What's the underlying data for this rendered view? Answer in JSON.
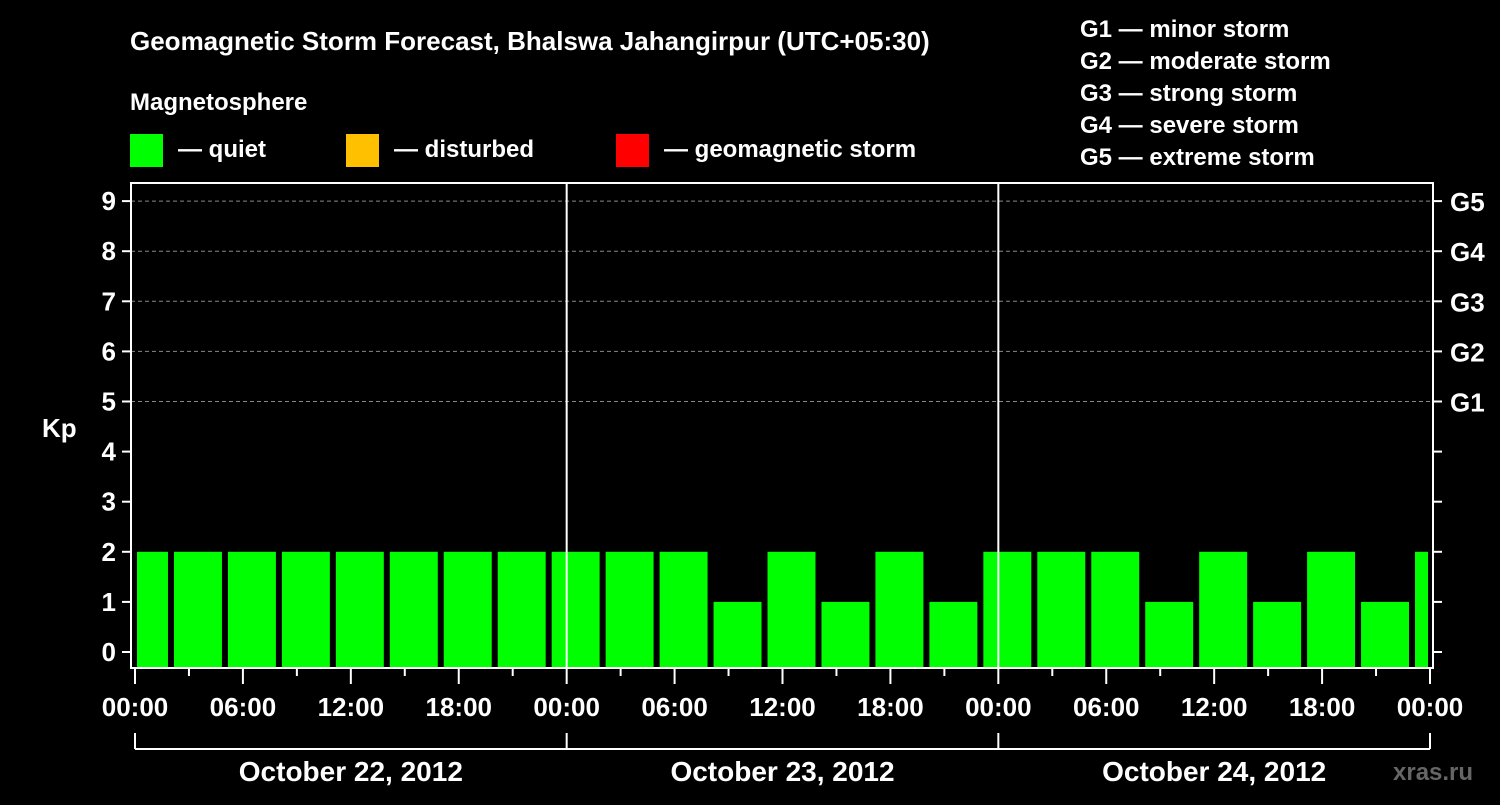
{
  "chart_data": {
    "type": "bar",
    "title": "Geomagnetic Storm Forecast, Bhalswa Jahangirpur (UTC+05:30)",
    "legend_title": "Magnetosphere",
    "legend": [
      {
        "label": "— quiet",
        "color": "#00ff00"
      },
      {
        "label": "— disturbed",
        "color": "#ffc000"
      },
      {
        "label": "— geomagnetic storm",
        "color": "#ff0000"
      }
    ],
    "g_scale": [
      "G1 — minor storm",
      "G2 — moderate storm",
      "G3 — strong storm",
      "G4 — severe storm",
      "G5 — extreme storm"
    ],
    "ylabel": "Kp",
    "ylim": [
      0,
      9
    ],
    "yticks": [
      "0",
      "1",
      "2",
      "3",
      "4",
      "5",
      "6",
      "7",
      "8",
      "9"
    ],
    "right_ticks": [
      {
        "kp": 5,
        "label": "G1"
      },
      {
        "kp": 6,
        "label": "G2"
      },
      {
        "kp": 7,
        "label": "G3"
      },
      {
        "kp": 8,
        "label": "G4"
      },
      {
        "kp": 9,
        "label": "G5"
      }
    ],
    "grid": "dashed at Kp 5-9",
    "xlim_hours": [
      0,
      72
    ],
    "xticks": [
      "00:00",
      "06:00",
      "12:00",
      "18:00",
      "00:00",
      "06:00",
      "12:00",
      "18:00",
      "00:00",
      "06:00",
      "12:00",
      "18:00",
      "00:00"
    ],
    "days": [
      "October 22, 2012",
      "October 23, 2012",
      "October 24, 2012"
    ],
    "bar_start_hours": [
      -1,
      2,
      5,
      8,
      11,
      14,
      17,
      20,
      23,
      26,
      29,
      32,
      35,
      38,
      41,
      44,
      47,
      50,
      53,
      56,
      59,
      62,
      65,
      68,
      71
    ],
    "values": [
      2,
      2,
      2,
      2,
      2,
      2,
      2,
      2,
      2,
      2,
      2,
      1,
      2,
      1,
      2,
      1,
      2,
      2,
      2,
      1,
      2,
      1,
      2,
      1,
      2
    ],
    "bar_color": "#00ff00",
    "watermark": "xras.ru"
  }
}
